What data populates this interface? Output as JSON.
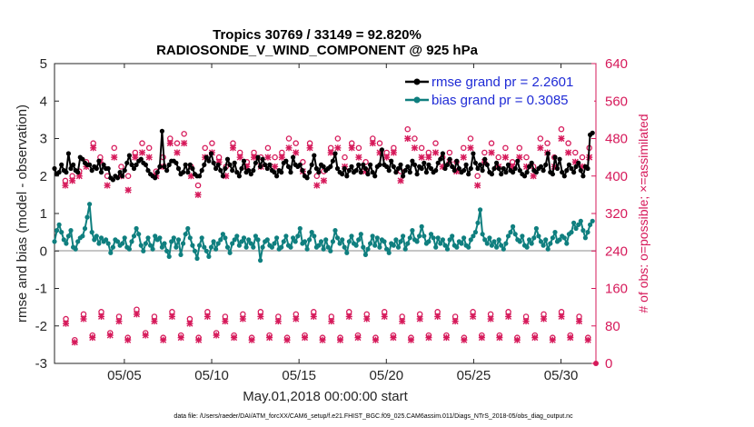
{
  "chart_data": {
    "type": "line",
    "title": "Tropics 30769 / 33149 = 92.820%",
    "subtitle": "RADIOSONDE_V_WIND_COMPONENT @ 925 hPa",
    "xlabel": "May.01,2018 00:00:00 start",
    "ylabel": "rmse and bias (model - observation)",
    "y2label": "# of obs: o=possible; ×=assimilated",
    "footnote": "data file: /Users/raeder/DAI/ATM_forcXX/CAM6_setup/f.e21.FHIST_BGC.f09_025.CAM6assim.011/Diags_NTrS_2018-05/obs_diag_output.nc",
    "xlim": [
      1,
      32
    ],
    "ylim": [
      -3,
      5
    ],
    "y2lim": [
      0,
      640
    ],
    "x_ticks": [
      5,
      10,
      15,
      20,
      25,
      30
    ],
    "x_tick_labels": [
      "05/05",
      "05/10",
      "05/15",
      "05/20",
      "05/25",
      "05/30"
    ],
    "y_ticks": [
      -3,
      -2,
      -1,
      0,
      1,
      2,
      3,
      4,
      5
    ],
    "y_tick_labels": [
      "-3",
      "-2",
      "-1",
      "0",
      "1",
      "2",
      "3",
      "4",
      "5"
    ],
    "y2_ticks": [
      0,
      80,
      160,
      240,
      320,
      400,
      480,
      560,
      640
    ],
    "y2_tick_labels": [
      "0",
      "80",
      "160",
      "240",
      "320",
      "400",
      "480",
      "560",
      "640"
    ],
    "legend": {
      "position": "top-right",
      "entries": [
        "rmse grand pr = 2.2601",
        "bias grand pr = 0.3085"
      ]
    },
    "series": [
      {
        "name": "rmse",
        "color": "#000000",
        "values": [
          2.2,
          2.05,
          2.1,
          2.3,
          2.15,
          2.1,
          2.6,
          2.2,
          2.3,
          2.15,
          2.1,
          2.5,
          2.45,
          2.35,
          2.3,
          2.3,
          2.15,
          2.25,
          2.2,
          2.4,
          2.1,
          2.3,
          2.2,
          2.2,
          1.95,
          1.9,
          2.0,
          1.95,
          2.1,
          2.0,
          2.15,
          2.35,
          2.55,
          2.3,
          2.2,
          2.3,
          2.4,
          2.45,
          2.35,
          2.3,
          2.15,
          2.05,
          2.0,
          1.95,
          2.1,
          2.25,
          3.2,
          2.25,
          2.15,
          2.3,
          2.4,
          2.4,
          2.35,
          2.2,
          2.05,
          2.1,
          2.3,
          2.1,
          2.3,
          2.2,
          2.05,
          2.0,
          2.0,
          2.15,
          2.3,
          2.5,
          2.4,
          2.6,
          2.35,
          2.2,
          2.3,
          2.15,
          2.0,
          2.2,
          2.45,
          2.3,
          2.15,
          2.35,
          2.1,
          2.0,
          2.2,
          2.4,
          2.1,
          2.15,
          2.05,
          2.15,
          2.35,
          2.5,
          2.25,
          2.45,
          2.3,
          2.2,
          2.3,
          2.15,
          2.1,
          2.0,
          2.15,
          2.1,
          2.35,
          2.4,
          2.25,
          2.1,
          2.5,
          2.3,
          2.25,
          2.3,
          2.15,
          2.0,
          1.95,
          2.1,
          2.3,
          2.55,
          2.2,
          2.1,
          2.3,
          2.25,
          2.15,
          2.2,
          2.25,
          2.4,
          2.6,
          2.2,
          2.1,
          2.05,
          2.2,
          2.0,
          2.15,
          2.25,
          2.1,
          2.15,
          2.3,
          2.1,
          2.3,
          2.2,
          2.05,
          2.3,
          2.1,
          2.0,
          2.25,
          2.3,
          2.7,
          2.3,
          2.25,
          2.15,
          2.4,
          2.25,
          2.1,
          2.2,
          2.3,
          2.0,
          2.15,
          2.25,
          2.1,
          2.4,
          2.3,
          2.05,
          2.25,
          2.2,
          2.35,
          2.1,
          2.3,
          2.2,
          2.1,
          2.15,
          2.35,
          2.45,
          2.6,
          2.2,
          2.3,
          2.45,
          2.25,
          2.15,
          2.4,
          2.2,
          2.1,
          2.15,
          2.3,
          2.05,
          2.2,
          2.6,
          2.35,
          2.2,
          2.3,
          2.15,
          2.45,
          2.3,
          2.1,
          2.05,
          2.2,
          2.35,
          2.2,
          2.05,
          2.2,
          2.1,
          2.3,
          2.15,
          2.1,
          2.2,
          2.4,
          2.15,
          2.05,
          2.0,
          2.1,
          2.25,
          2.35,
          2.15,
          2.1,
          2.2,
          2.25,
          2.15,
          2.3,
          2.6,
          2.1,
          2.05,
          2.5,
          2.2,
          2.45,
          2.1,
          2.0,
          2.15,
          2.3,
          2.2,
          2.1,
          2.25,
          2.35,
          2.15,
          2.0,
          2.25,
          2.2,
          3.1,
          3.15
        ]
      },
      {
        "name": "bias",
        "color": "#0f7f7f",
        "values": [
          0.25,
          0.55,
          0.7,
          0.5,
          0.3,
          0.2,
          0.4,
          0.55,
          0.1,
          0.05,
          0.25,
          0.35,
          0.4,
          0.6,
          0.9,
          1.25,
          0.5,
          0.3,
          0.4,
          0.2,
          0.35,
          0.25,
          0.3,
          0.2,
          -0.05,
          0.1,
          0.3,
          0.25,
          0.15,
          0.2,
          0.35,
          0.1,
          0.05,
          0.25,
          0.4,
          0.6,
          0.45,
          0.15,
          0.0,
          0.2,
          0.35,
          0.15,
          0.05,
          0.4,
          0.3,
          0.35,
          0.1,
          0.2,
          0.0,
          -0.15,
          0.25,
          0.35,
          0.1,
          0.3,
          -0.1,
          0.2,
          0.45,
          0.6,
          0.35,
          0.15,
          0.0,
          -0.2,
          0.15,
          0.35,
          0.1,
          0.0,
          -0.15,
          0.1,
          0.25,
          0.05,
          0.2,
          0.3,
          0.45,
          0.35,
          0.1,
          -0.05,
          0.2,
          0.3,
          0.4,
          0.15,
          0.25,
          0.35,
          0.1,
          0.3,
          0.2,
          0.1,
          0.4,
          0.3,
          -0.25,
          0.1,
          0.25,
          0.3,
          0.15,
          0.1,
          0.2,
          0.35,
          0.05,
          0.1,
          0.25,
          0.4,
          0.15,
          0.1,
          0.35,
          0.25,
          0.4,
          0.6,
          0.2,
          0.25,
          0.05,
          0.3,
          0.5,
          0.4,
          0.1,
          0.15,
          0.25,
          0.05,
          0.3,
          0.1,
          0.0,
          0.25,
          0.55,
          0.35,
          0.2,
          0.3,
          0.1,
          -0.05,
          0.25,
          0.4,
          0.2,
          0.15,
          0.3,
          0.45,
          0.1,
          -0.1,
          0.05,
          0.2,
          0.4,
          0.15,
          0.35,
          0.1,
          0.3,
          0.25,
          0.05,
          -0.05,
          0.2,
          0.15,
          0.3,
          0.1,
          0.25,
          0.4,
          0.05,
          0.2,
          0.35,
          0.55,
          0.3,
          0.25,
          0.4,
          0.65,
          0.4,
          0.2,
          0.25,
          0.45,
          0.35,
          0.1,
          0.35,
          0.2,
          0.3,
          0.15,
          0.05,
          0.3,
          0.4,
          0.15,
          0.1,
          0.25,
          0.2,
          0.35,
          0.15,
          0.1,
          0.3,
          0.4,
          0.5,
          0.75,
          1.1,
          0.45,
          0.3,
          0.2,
          0.35,
          0.15,
          0.25,
          0.1,
          0.3,
          0.15,
          0.05,
          0.2,
          0.4,
          0.5,
          0.65,
          0.45,
          0.3,
          0.25,
          0.4,
          0.15,
          0.1,
          0.3,
          0.2,
          0.35,
          0.6,
          0.4,
          0.25,
          0.15,
          0.3,
          0.05,
          0.2,
          0.35,
          0.5,
          0.25,
          0.3,
          0.4,
          0.35,
          0.2,
          0.45,
          0.5,
          0.75,
          0.6,
          0.7,
          0.8,
          0.55,
          0.35,
          0.5,
          0.7,
          0.8
        ]
      }
    ],
    "obs_possible_hi": [
      390,
      400,
      410,
      430,
      470,
      440,
      400,
      460,
      420,
      400,
      450,
      470,
      460,
      410,
      440,
      480,
      470,
      490,
      420,
      380,
      460,
      470,
      440,
      420,
      470,
      450,
      430,
      450,
      440,
      460,
      440,
      450,
      480,
      470,
      430,
      470,
      400,
      410,
      460,
      480,
      440,
      470,
      460,
      430,
      480,
      470,
      450,
      460,
      410,
      500,
      480,
      460,
      450,
      470,
      440,
      450,
      430,
      460,
      480,
      400,
      450,
      470,
      440,
      460,
      430,
      460,
      440,
      420,
      480,
      470,
      440,
      500,
      470,
      450,
      440,
      460
    ],
    "obs_assim_hi": [
      380,
      390,
      400,
      420,
      460,
      430,
      380,
      440,
      400,
      370,
      440,
      450,
      440,
      400,
      420,
      470,
      450,
      470,
      400,
      360,
      440,
      450,
      430,
      400,
      460,
      440,
      420,
      440,
      420,
      440,
      420,
      440,
      460,
      450,
      410,
      460,
      380,
      390,
      450,
      460,
      420,
      460,
      440,
      410,
      470,
      450,
      440,
      450,
      390,
      480,
      460,
      440,
      440,
      450,
      420,
      430,
      410,
      440,
      460,
      380,
      430,
      450,
      420,
      440,
      420,
      440,
      420,
      400,
      460,
      450,
      420,
      480,
      450,
      430,
      420,
      440
    ],
    "obs_possible_lo": [
      95,
      50,
      105,
      60,
      110,
      65,
      100,
      55,
      115,
      65,
      100,
      55,
      110,
      60,
      95,
      55,
      110,
      65,
      100,
      60,
      105,
      55,
      110,
      60,
      100,
      55,
      105,
      60,
      110,
      55,
      100,
      55,
      110,
      60,
      105,
      55,
      110,
      60,
      100,
      55,
      105,
      60,
      110,
      60,
      100,
      55,
      110,
      60,
      105,
      60,
      110,
      55,
      100,
      60,
      105,
      55,
      110,
      60,
      100,
      55
    ],
    "obs_assim_lo": [
      85,
      45,
      95,
      55,
      100,
      60,
      90,
      50,
      105,
      60,
      90,
      50,
      100,
      55,
      85,
      50,
      100,
      60,
      90,
      55,
      95,
      50,
      100,
      55,
      90,
      50,
      95,
      55,
      100,
      50,
      90,
      50,
      100,
      55,
      95,
      50,
      100,
      55,
      90,
      50,
      95,
      55,
      100,
      55,
      90,
      50,
      100,
      55,
      95,
      55,
      100,
      50,
      90,
      55,
      95,
      50,
      100,
      55,
      90,
      50
    ]
  },
  "colors": {
    "rmse": "#000000",
    "bias": "#0f7f7f",
    "obs": "#d6195a",
    "legend_text": "#1f2bd6",
    "zero_line": "#b4b4b4"
  }
}
